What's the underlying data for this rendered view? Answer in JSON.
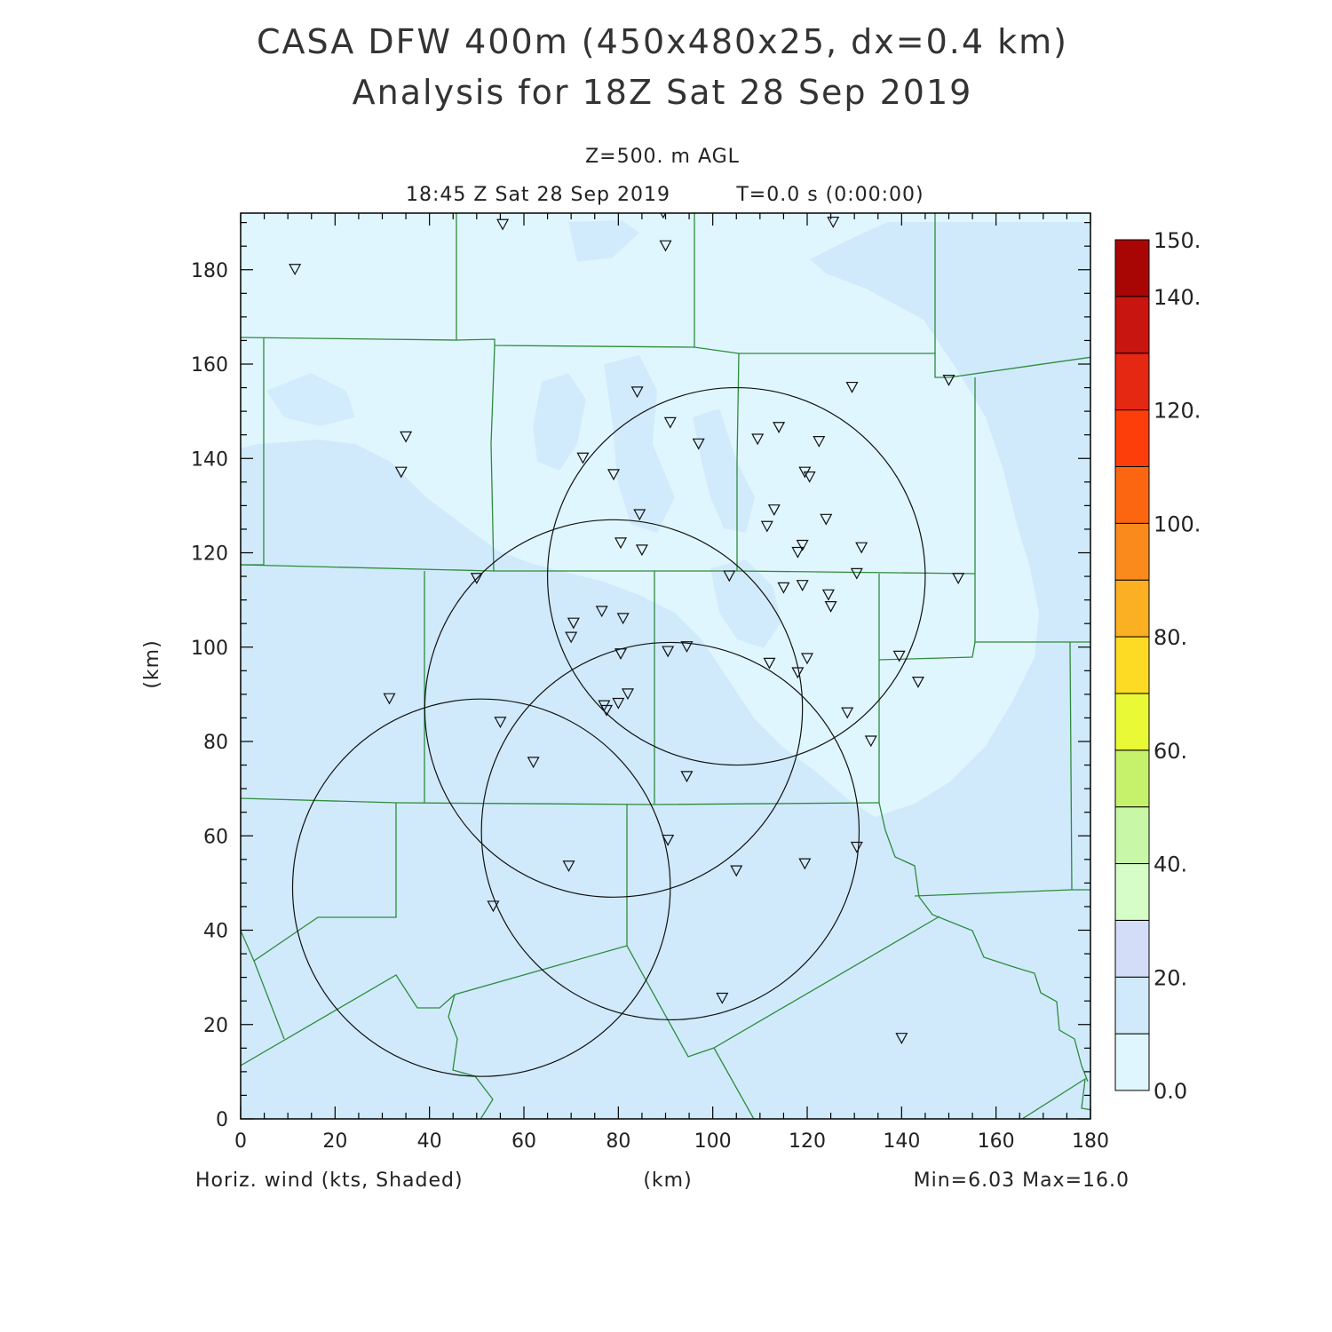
{
  "header": {
    "title_line1": "CASA DFW 400m (450x480x25, dx=0.4 km)",
    "title_line2": "Analysis for 18Z Sat 28 Sep 2019",
    "level": "Z=500. m AGL",
    "valid_time": "18:45 Z Sat 28 Sep 2019",
    "model_time": "T=0.0 s (0:00:00)"
  },
  "footer": {
    "field_label": "Horiz. wind (kts, Shaded)",
    "x_unit": "(km)",
    "minmax": "Min=6.03 Max=16.0"
  },
  "y_axis_label": "(km)",
  "colors": {
    "light_fill": "#e0f6fe",
    "medium_fill": "#d0eafc",
    "county_lines": "#2e8b3c",
    "frame": "#000000"
  },
  "chart_data": {
    "type": "map",
    "xlim": [
      0,
      180
    ],
    "ylim": [
      0,
      192
    ],
    "x_ticks": [
      "0",
      "20",
      "40",
      "60",
      "80",
      "100",
      "120",
      "140",
      "160",
      "180"
    ],
    "y_ticks": [
      "0",
      "20",
      "40",
      "60",
      "80",
      "100",
      "120",
      "140",
      "160",
      "180"
    ],
    "colorbar": {
      "range": [
        0,
        150
      ],
      "labels": [
        "0.0",
        "20.",
        "40.",
        "60.",
        "80.",
        "100.",
        "120.",
        "140.",
        "150."
      ],
      "bins": [
        {
          "from": 0,
          "to": 10,
          "color": "#e0f6fe"
        },
        {
          "from": 10,
          "to": 20,
          "color": "#d0eafc"
        },
        {
          "from": 20,
          "to": 30,
          "color": "#d4ddf7"
        },
        {
          "from": 30,
          "to": 40,
          "color": "#d6fcc8"
        },
        {
          "from": 40,
          "to": 50,
          "color": "#c8f7a8"
        },
        {
          "from": 50,
          "to": 60,
          "color": "#c6f26b"
        },
        {
          "from": 60,
          "to": 70,
          "color": "#e9f936"
        },
        {
          "from": 70,
          "to": 80,
          "color": "#fddb25"
        },
        {
          "from": 80,
          "to": 90,
          "color": "#fbb023"
        },
        {
          "from": 90,
          "to": 100,
          "color": "#fb8a1c"
        },
        {
          "from": 100,
          "to": 110,
          "color": "#fc6610"
        },
        {
          "from": 110,
          "to": 120,
          "color": "#fd3e0a"
        },
        {
          "from": 120,
          "to": 130,
          "color": "#e52812"
        },
        {
          "from": 130,
          "to": 140,
          "color": "#c81510"
        },
        {
          "from": 140,
          "to": 150,
          "color": "#a80505"
        }
      ]
    },
    "radar_rings": [
      {
        "cx": 105,
        "cy": 115,
        "r": 40
      },
      {
        "cx": 79,
        "cy": 87,
        "r": 40
      },
      {
        "cx": 91,
        "cy": 61,
        "r": 40
      },
      {
        "cx": 51,
        "cy": 49,
        "r": 40
      }
    ],
    "stations": [
      [
        11.5,
        180
      ],
      [
        55.5,
        189.5
      ],
      [
        89.5,
        192
      ],
      [
        90,
        185
      ],
      [
        125.5,
        190
      ],
      [
        35,
        144.5
      ],
      [
        34,
        137
      ],
      [
        50,
        114.5
      ],
      [
        31.5,
        89
      ],
      [
        55,
        84
      ],
      [
        84,
        154
      ],
      [
        91,
        147.5
      ],
      [
        97,
        143
      ],
      [
        72.5,
        140
      ],
      [
        79,
        136.5
      ],
      [
        84.5,
        128
      ],
      [
        80.5,
        122
      ],
      [
        85,
        120.5
      ],
      [
        109.5,
        144
      ],
      [
        114,
        146.5
      ],
      [
        122.5,
        143.5
      ],
      [
        119.5,
        137
      ],
      [
        120.5,
        136
      ],
      [
        113,
        129
      ],
      [
        111.5,
        125.5
      ],
      [
        119,
        121.5
      ],
      [
        118,
        120
      ],
      [
        124,
        127
      ],
      [
        131.5,
        121
      ],
      [
        129.5,
        155
      ],
      [
        103.5,
        115
      ],
      [
        115,
        112.5
      ],
      [
        119,
        113
      ],
      [
        124.5,
        111
      ],
      [
        125,
        108.5
      ],
      [
        130.5,
        115.5
      ],
      [
        150,
        156.5
      ],
      [
        152,
        114.5
      ],
      [
        70.5,
        105
      ],
      [
        70,
        102
      ],
      [
        76.5,
        107.5
      ],
      [
        81,
        106
      ],
      [
        80.5,
        98.5
      ],
      [
        90.5,
        99
      ],
      [
        94.5,
        100
      ],
      [
        112,
        96.5
      ],
      [
        118,
        94.5
      ],
      [
        120,
        97.5
      ],
      [
        128.5,
        86
      ],
      [
        139.5,
        98
      ],
      [
        143.5,
        92.5
      ],
      [
        133.5,
        80
      ],
      [
        82,
        90
      ],
      [
        80,
        88
      ],
      [
        77.5,
        86.5
      ],
      [
        77,
        87.5
      ],
      [
        62,
        75.5
      ],
      [
        94.5,
        72.5
      ],
      [
        90.5,
        59
      ],
      [
        69.5,
        53.5
      ],
      [
        105,
        52.5
      ],
      [
        119.5,
        54
      ],
      [
        130.5,
        57.5
      ],
      [
        53.5,
        45
      ],
      [
        102,
        25.5
      ],
      [
        140,
        17
      ]
    ],
    "shading_light_zone": {
      "note": "Lighter band (0-10 kt) oriented NW-SE through the north-central domain"
    }
  }
}
